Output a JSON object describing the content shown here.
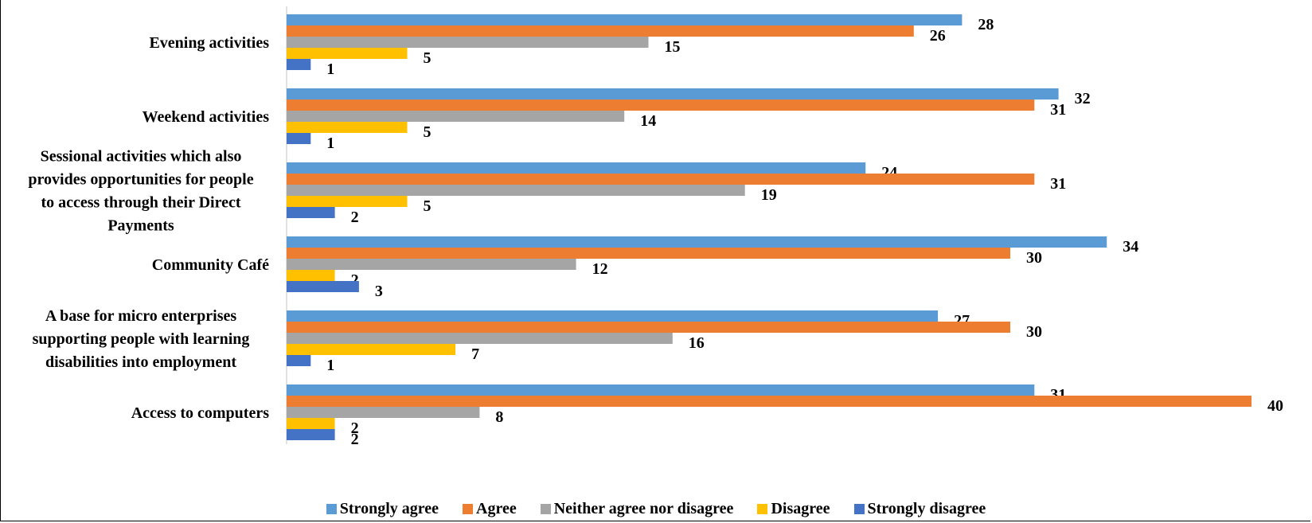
{
  "chart_data": {
    "type": "bar",
    "orientation": "horizontal",
    "categories": [
      "Evening activities",
      "Weekend activities",
      "Sessional activities which also provides opportunities for people to access through their Direct Payments",
      "Community Café",
      "A base for micro enterprises supporting people with learning disabilities into employment",
      "Access to computers"
    ],
    "series": [
      {
        "name": "Strongly agree",
        "color": "#5B9BD5",
        "values": [
          28,
          32,
          24,
          34,
          27,
          31
        ]
      },
      {
        "name": "Agree",
        "color": "#ED7D31",
        "values": [
          26,
          31,
          31,
          30,
          30,
          40
        ]
      },
      {
        "name": "Neither agree nor disagree",
        "color": "#A5A5A5",
        "values": [
          15,
          14,
          19,
          12,
          16,
          8
        ]
      },
      {
        "name": "Disagree",
        "color": "#FFC000",
        "values": [
          5,
          5,
          5,
          2,
          7,
          2
        ]
      },
      {
        "name": "Strongly disagree",
        "color": "#4472C4",
        "values": [
          1,
          1,
          2,
          3,
          1,
          2
        ]
      }
    ],
    "xlim": [
      0,
      40
    ],
    "grid": false,
    "legend_position": "bottom",
    "title": "",
    "xlabel": "",
    "ylabel": ""
  }
}
